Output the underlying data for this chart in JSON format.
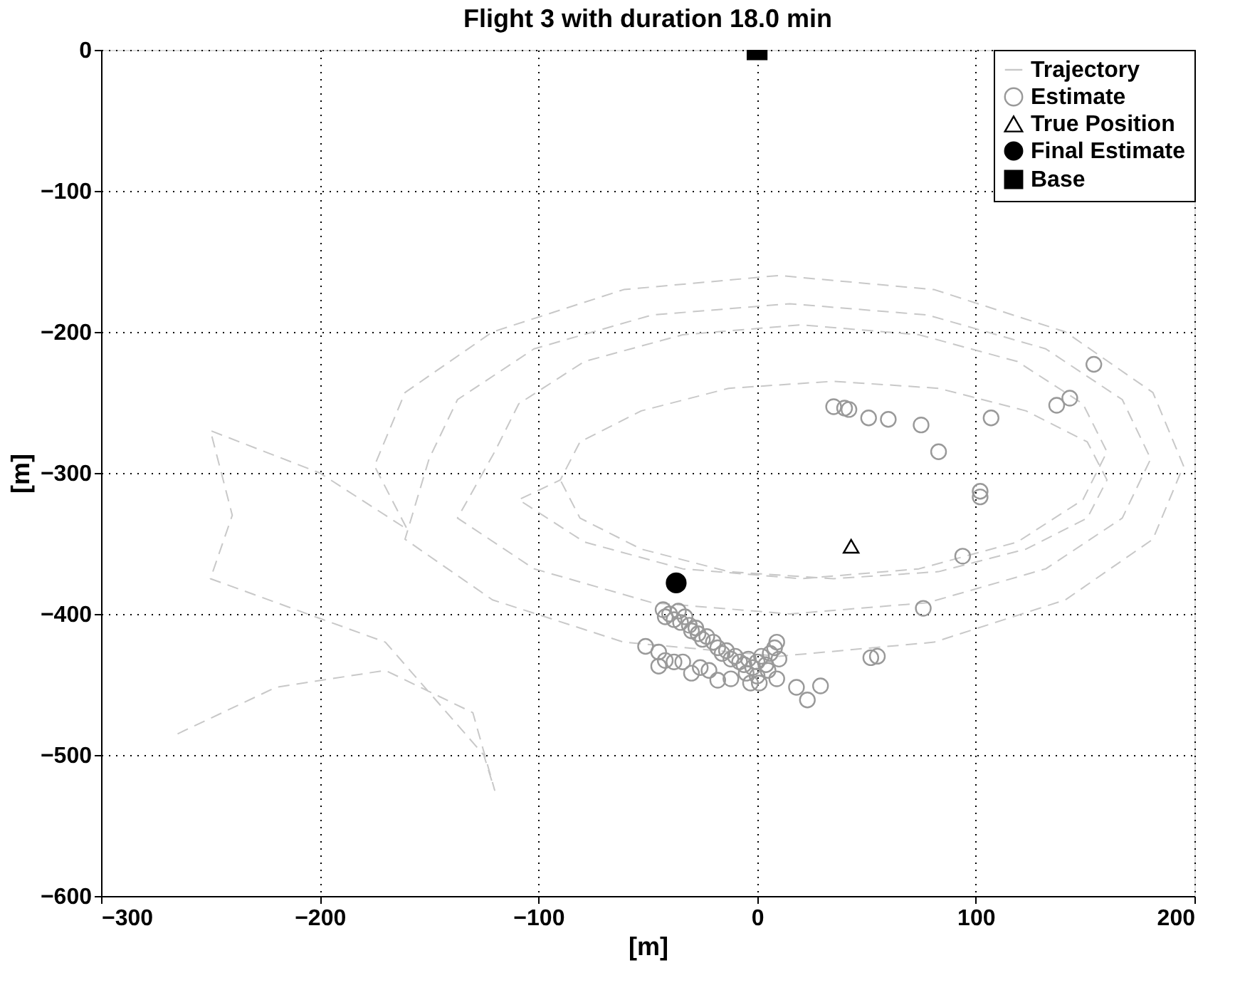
{
  "chart_data": {
    "type": "scatter",
    "title": "Flight 3 with duration 18.0 min",
    "xlabel": "[m]",
    "ylabel": "[m]",
    "xlim": [
      -300,
      200
    ],
    "xticks": [
      -300,
      -200,
      -100,
      0,
      100,
      200
    ],
    "ylim": [
      -600,
      0
    ],
    "yticks": [
      -600,
      -500,
      -400,
      -300,
      -200,
      -100,
      0
    ],
    "grid": true,
    "legend": "top right",
    "series": [
      {
        "name": "Trajectory",
        "type": "line",
        "line_style": "dashed",
        "color": "#c8c8c8",
        "x": [
          -265,
          -220,
          -170,
          -130,
          -120,
          -125,
          -170,
          -250,
          -240,
          -250,
          -200,
          -160,
          -175,
          -161,
          -121,
          -61,
          10,
          81,
          141,
          181,
          195,
          181,
          141,
          81,
          10,
          -61,
          -121,
          -161,
          -150,
          -137,
          -102,
          -48,
          15,
          78,
          132,
          167,
          180,
          167,
          132,
          78,
          15,
          -48,
          -102,
          -137,
          -120,
          -109,
          -79,
          -34,
          20,
          74,
          119,
          149,
          160,
          149,
          119,
          74,
          20,
          -34,
          -79,
          -109,
          -90,
          -81,
          -53,
          -13,
          35,
          83,
          123,
          151,
          160,
          151,
          123,
          83,
          35,
          -13,
          -53,
          -81,
          -90
        ],
        "values": [
          -485,
          -452,
          -440,
          -470,
          -525,
          -500,
          -420,
          -375,
          -330,
          -270,
          -300,
          -340,
          -295,
          -243,
          -200,
          -170,
          -160,
          -170,
          -200,
          -243,
          -295,
          -347,
          -390,
          -420,
          -430,
          -420,
          -390,
          -347,
          -290,
          -248,
          -212,
          -188,
          -180,
          -188,
          -212,
          -248,
          -290,
          -332,
          -368,
          -392,
          -400,
          -392,
          -368,
          -332,
          -285,
          -251,
          -221,
          -202,
          -195,
          -202,
          -221,
          -251,
          -285,
          -319,
          -349,
          -368,
          -375,
          -368,
          -349,
          -319,
          -305,
          -278,
          -256,
          -240,
          -235,
          -240,
          -256,
          -278,
          -305,
          -332,
          -354,
          -370,
          -375,
          -370,
          -354,
          -332,
          -305
        ]
      },
      {
        "name": "Estimate",
        "marker": "circle",
        "color": "#999999",
        "x": [
          35,
          40,
          42,
          51,
          60,
          75,
          83,
          107,
          137,
          143,
          154,
          102,
          102,
          94,
          76,
          52,
          55,
          18,
          23,
          29,
          -43,
          -42,
          -40,
          -38,
          -36,
          -35,
          -33,
          -31,
          -30,
          -28,
          -27,
          -25,
          -23,
          -20,
          -18,
          -16,
          -14,
          -12,
          -10,
          -8,
          -6,
          -4,
          -2,
          0,
          2,
          4,
          6,
          8,
          9,
          10,
          5,
          0,
          -5,
          -12,
          -18,
          -22,
          -26,
          -30,
          -34,
          -38,
          -42,
          -45,
          -45,
          -51,
          1,
          9,
          -3
        ],
        "values": [
          -253,
          -254,
          -255,
          -261,
          -262,
          -266,
          -285,
          -261,
          -252,
          -247,
          -223,
          -313,
          -317,
          -359,
          -396,
          -431,
          -430,
          -452,
          -461,
          -451,
          -397,
          -402,
          -400,
          -404,
          -398,
          -406,
          -402,
          -408,
          -412,
          -410,
          -414,
          -418,
          -416,
          -420,
          -424,
          -428,
          -426,
          -432,
          -430,
          -434,
          -436,
          -432,
          -438,
          -434,
          -430,
          -436,
          -428,
          -424,
          -420,
          -432,
          -440,
          -444,
          -442,
          -446,
          -447,
          -440,
          -438,
          -442,
          -434,
          -434,
          -433,
          -437,
          -427,
          -423,
          -449,
          -446,
          -449
        ]
      },
      {
        "name": "True Position",
        "marker": "triangle",
        "color": "#000000",
        "x": [
          43
        ],
        "values": [
          -352
        ]
      },
      {
        "name": "Final Estimate",
        "marker": "circle",
        "color": "#000000",
        "x": [
          -37
        ],
        "values": [
          -378
        ]
      },
      {
        "name": "Base",
        "marker": "square",
        "color": "#000000",
        "x": [
          0
        ],
        "values": [
          0
        ]
      }
    ]
  }
}
